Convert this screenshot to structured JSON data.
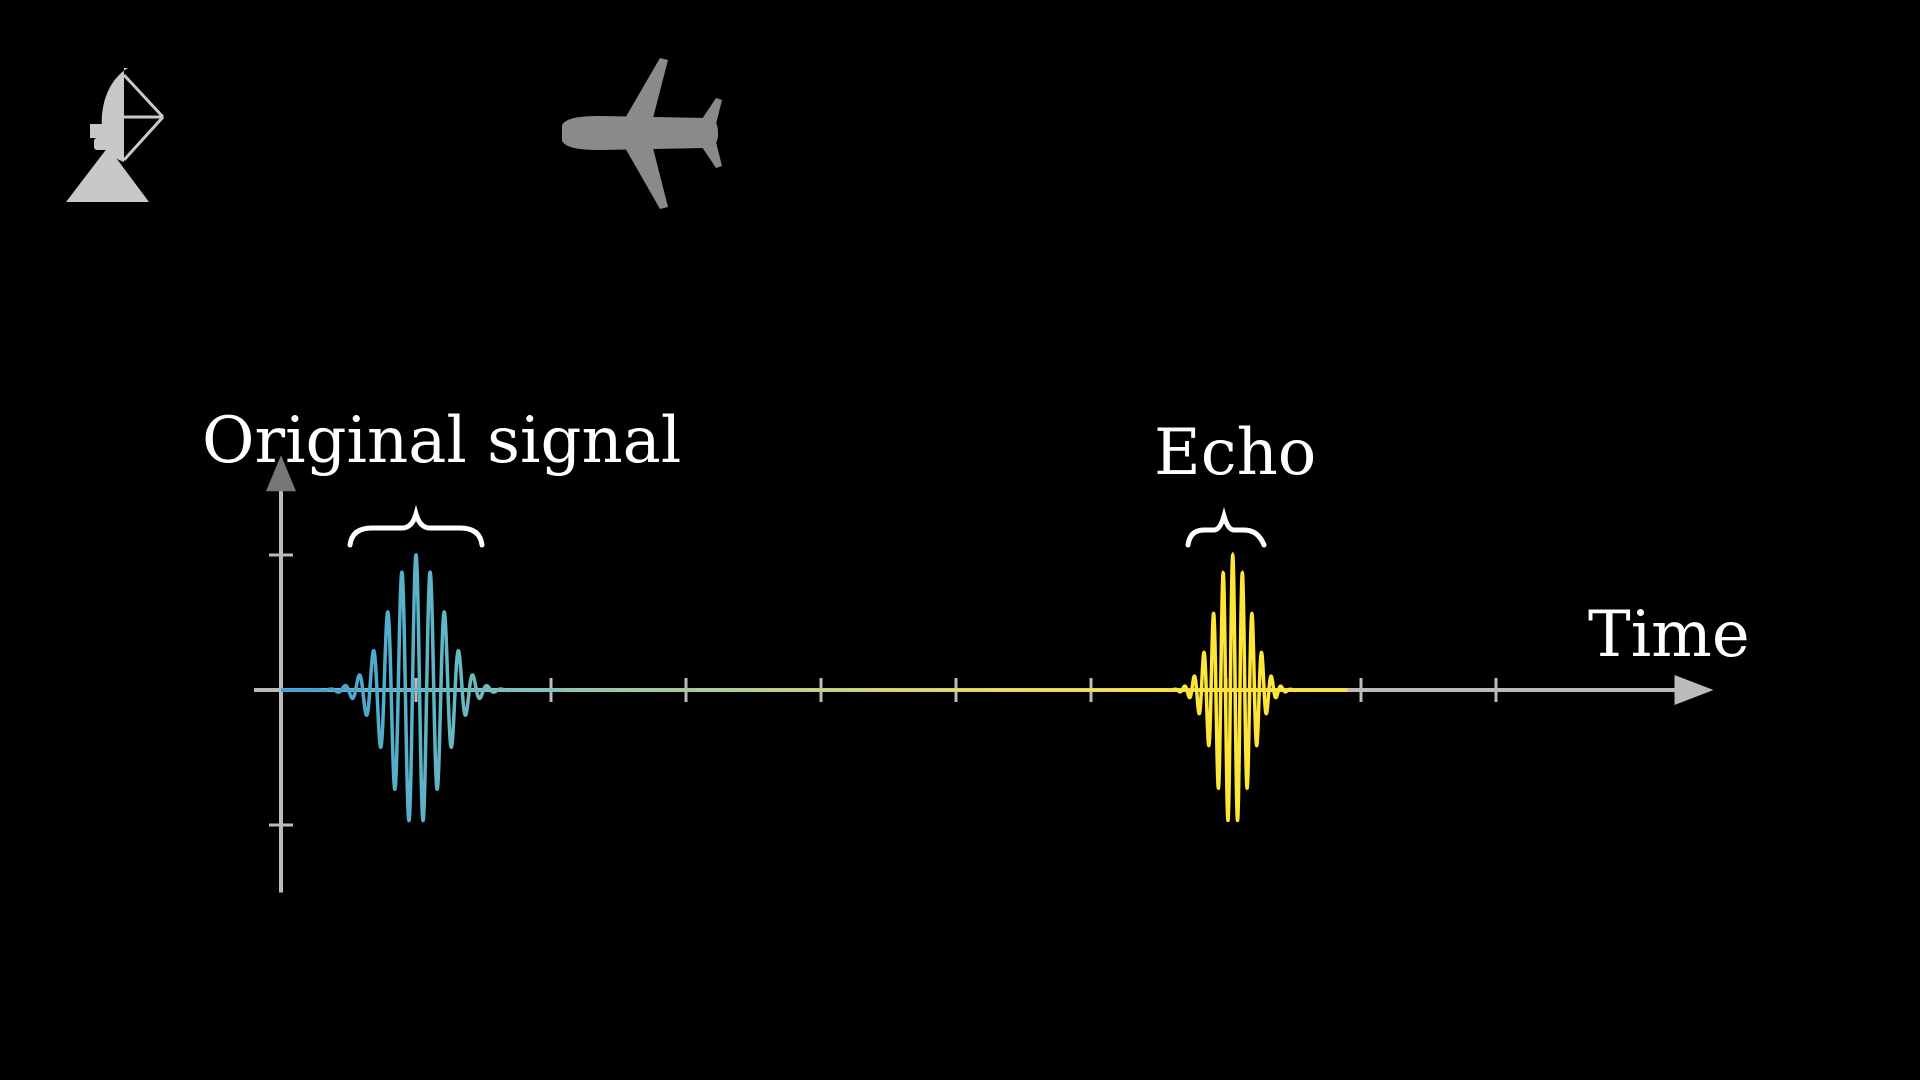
{
  "labels": {
    "original": "Original signal",
    "echo": "Echo",
    "time": "Time"
  },
  "icons": {
    "radar": "radar-dish-icon",
    "airplane": "airplane-icon"
  },
  "colors": {
    "background": "#000000",
    "axis": "#bbbbbb",
    "original_start": "#3aa0d8",
    "original_end": "#7fc4b8",
    "echo": "#ffe43a",
    "label": "#ffffff",
    "icon_radar": "#c8c8c8",
    "icon_plane": "#8a8a8a"
  },
  "signal": {
    "original_pulse": {
      "center": 1.0,
      "width": 0.42,
      "cycles_per_unit": 9.5,
      "amplitude": 1.0
    },
    "echo_pulse": {
      "center": 7.05,
      "width": 0.28,
      "cycles_per_unit": 14,
      "amplitude": 1.0
    }
  },
  "axes": {
    "x_range": [
      -0.2,
      10.5
    ],
    "x_ticks": [
      1,
      2,
      3,
      4,
      5,
      6,
      7,
      8,
      9
    ],
    "y_range": [
      -1.5,
      1.65
    ],
    "y_ticks": [
      -1,
      1
    ]
  }
}
